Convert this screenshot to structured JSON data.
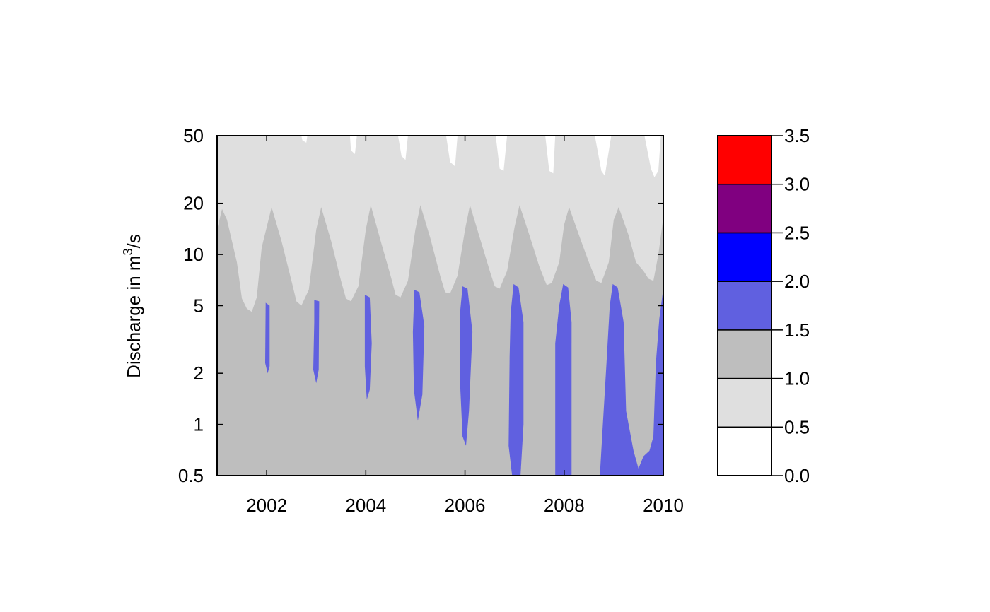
{
  "chart_data": {
    "type": "heatmap",
    "title": "",
    "xlabel": "",
    "ylabel": {
      "prefix": "Discharge in m",
      "superscript": "3",
      "suffix": "/s"
    },
    "x_axis": {
      "range": [
        2001.0,
        2010.0
      ],
      "ticks": [
        2002,
        2004,
        2006,
        2008,
        2010
      ],
      "tick_labels": [
        "2002",
        "2004",
        "2006",
        "2008",
        "2010"
      ]
    },
    "y_axis": {
      "scale": "log",
      "range": [
        0.5,
        50
      ],
      "ticks": [
        0.5,
        1,
        2,
        5,
        10,
        20,
        50
      ],
      "tick_labels": [
        "0.5",
        "1",
        "2",
        "5",
        "10",
        "20",
        "50"
      ]
    },
    "colorbar": {
      "placement": "right",
      "levels": [
        0.0,
        0.5,
        1.0,
        1.5,
        2.0,
        2.5,
        3.0,
        3.5
      ],
      "level_labels": [
        "0.0",
        "0.5",
        "1.0",
        "1.5",
        "2.0",
        "2.5",
        "3.0",
        "3.5"
      ],
      "colors": [
        "#ffffff",
        "#dfdfdf",
        "#bebebe",
        "#6060e0",
        "#0000ff",
        "#800080",
        "#ff0000"
      ]
    },
    "contours": {
      "level_1_0_boundary": [
        {
          "x": 2001.0,
          "y": 14
        },
        {
          "x": 2001.1,
          "y": 18.5
        },
        {
          "x": 2001.2,
          "y": 16
        },
        {
          "x": 2001.4,
          "y": 9
        },
        {
          "x": 2001.5,
          "y": 5.5
        },
        {
          "x": 2001.6,
          "y": 4.8
        },
        {
          "x": 2001.7,
          "y": 4.6
        },
        {
          "x": 2001.8,
          "y": 5.6
        },
        {
          "x": 2001.9,
          "y": 11
        },
        {
          "x": 2002.1,
          "y": 19
        },
        {
          "x": 2002.3,
          "y": 12
        },
        {
          "x": 2002.5,
          "y": 7
        },
        {
          "x": 2002.6,
          "y": 5.3
        },
        {
          "x": 2002.7,
          "y": 5.0
        },
        {
          "x": 2002.85,
          "y": 6.2
        },
        {
          "x": 2003.0,
          "y": 14
        },
        {
          "x": 2003.1,
          "y": 19
        },
        {
          "x": 2003.3,
          "y": 12
        },
        {
          "x": 2003.5,
          "y": 7
        },
        {
          "x": 2003.6,
          "y": 5.5
        },
        {
          "x": 2003.7,
          "y": 5.3
        },
        {
          "x": 2003.85,
          "y": 6.5
        },
        {
          "x": 2004.0,
          "y": 14
        },
        {
          "x": 2004.1,
          "y": 19.5
        },
        {
          "x": 2004.3,
          "y": 12
        },
        {
          "x": 2004.5,
          "y": 7.5
        },
        {
          "x": 2004.6,
          "y": 5.8
        },
        {
          "x": 2004.7,
          "y": 5.6
        },
        {
          "x": 2004.85,
          "y": 7
        },
        {
          "x": 2005.0,
          "y": 14
        },
        {
          "x": 2005.1,
          "y": 19.5
        },
        {
          "x": 2005.3,
          "y": 12.5
        },
        {
          "x": 2005.5,
          "y": 7.5
        },
        {
          "x": 2005.6,
          "y": 6.0
        },
        {
          "x": 2005.7,
          "y": 5.9
        },
        {
          "x": 2005.85,
          "y": 7.5
        },
        {
          "x": 2006.0,
          "y": 14
        },
        {
          "x": 2006.1,
          "y": 19.5
        },
        {
          "x": 2006.3,
          "y": 12.5
        },
        {
          "x": 2006.5,
          "y": 8
        },
        {
          "x": 2006.6,
          "y": 6.5
        },
        {
          "x": 2006.7,
          "y": 6.3
        },
        {
          "x": 2006.85,
          "y": 8
        },
        {
          "x": 2007.0,
          "y": 14.5
        },
        {
          "x": 2007.1,
          "y": 19.5
        },
        {
          "x": 2007.3,
          "y": 13
        },
        {
          "x": 2007.5,
          "y": 8.5
        },
        {
          "x": 2007.65,
          "y": 6.6
        },
        {
          "x": 2007.75,
          "y": 6.8
        },
        {
          "x": 2007.9,
          "y": 9
        },
        {
          "x": 2008.0,
          "y": 15
        },
        {
          "x": 2008.1,
          "y": 19
        },
        {
          "x": 2008.3,
          "y": 13
        },
        {
          "x": 2008.5,
          "y": 9
        },
        {
          "x": 2008.65,
          "y": 7.0
        },
        {
          "x": 2008.75,
          "y": 6.8
        },
        {
          "x": 2008.9,
          "y": 9
        },
        {
          "x": 2009.0,
          "y": 16
        },
        {
          "x": 2009.1,
          "y": 19
        },
        {
          "x": 2009.3,
          "y": 13
        },
        {
          "x": 2009.45,
          "y": 9
        },
        {
          "x": 2009.6,
          "y": 8
        },
        {
          "x": 2009.7,
          "y": 7.2
        },
        {
          "x": 2009.8,
          "y": 7.0
        },
        {
          "x": 2009.9,
          "y": 10
        },
        {
          "x": 2010.0,
          "y": 16.5
        }
      ],
      "level_0_5_regions": [
        [
          {
            "x": 2002.7,
            "y": 50
          },
          {
            "x": 2002.72,
            "y": 47
          },
          {
            "x": 2002.8,
            "y": 45.5
          },
          {
            "x": 2002.82,
            "y": 50
          }
        ],
        [
          {
            "x": 2003.68,
            "y": 50
          },
          {
            "x": 2003.7,
            "y": 41
          },
          {
            "x": 2003.78,
            "y": 39
          },
          {
            "x": 2003.82,
            "y": 50
          }
        ],
        [
          {
            "x": 2004.65,
            "y": 50
          },
          {
            "x": 2004.72,
            "y": 38
          },
          {
            "x": 2004.8,
            "y": 36
          },
          {
            "x": 2004.85,
            "y": 50
          }
        ],
        [
          {
            "x": 2005.62,
            "y": 50
          },
          {
            "x": 2005.7,
            "y": 35
          },
          {
            "x": 2005.8,
            "y": 33
          },
          {
            "x": 2005.85,
            "y": 50
          }
        ],
        [
          {
            "x": 2006.62,
            "y": 50
          },
          {
            "x": 2006.7,
            "y": 32
          },
          {
            "x": 2006.78,
            "y": 31
          },
          {
            "x": 2006.85,
            "y": 50
          }
        ],
        [
          {
            "x": 2007.62,
            "y": 50
          },
          {
            "x": 2007.7,
            "y": 31
          },
          {
            "x": 2007.78,
            "y": 30
          },
          {
            "x": 2007.82,
            "y": 50
          }
        ],
        [
          {
            "x": 2008.62,
            "y": 50
          },
          {
            "x": 2008.75,
            "y": 31
          },
          {
            "x": 2008.82,
            "y": 29
          },
          {
            "x": 2008.95,
            "y": 50
          }
        ],
        [
          {
            "x": 2009.62,
            "y": 50
          },
          {
            "x": 2009.75,
            "y": 32
          },
          {
            "x": 2009.82,
            "y": 28.5
          },
          {
            "x": 2009.9,
            "y": 31
          },
          {
            "x": 2009.95,
            "y": 50
          }
        ]
      ],
      "level_1_5_regions": [
        [
          {
            "x": 2001.98,
            "y": 5.2
          },
          {
            "x": 2002.06,
            "y": 5.0
          },
          {
            "x": 2002.06,
            "y": 2.2
          },
          {
            "x": 2002.02,
            "y": 2.0
          },
          {
            "x": 2001.97,
            "y": 2.3
          }
        ],
        [
          {
            "x": 2002.96,
            "y": 5.4
          },
          {
            "x": 2003.06,
            "y": 5.3
          },
          {
            "x": 2003.05,
            "y": 2.1
          },
          {
            "x": 2003.0,
            "y": 1.75
          },
          {
            "x": 2002.94,
            "y": 2.1
          },
          {
            "x": 2002.96,
            "y": 4.0
          }
        ],
        [
          {
            "x": 2003.98,
            "y": 5.8
          },
          {
            "x": 2004.08,
            "y": 5.6
          },
          {
            "x": 2004.12,
            "y": 3.0
          },
          {
            "x": 2004.08,
            "y": 1.6
          },
          {
            "x": 2004.02,
            "y": 1.4
          },
          {
            "x": 2003.98,
            "y": 2.2
          }
        ],
        [
          {
            "x": 2004.98,
            "y": 6.2
          },
          {
            "x": 2005.08,
            "y": 6.0
          },
          {
            "x": 2005.18,
            "y": 3.8
          },
          {
            "x": 2005.14,
            "y": 1.5
          },
          {
            "x": 2005.05,
            "y": 1.05
          },
          {
            "x": 2004.97,
            "y": 1.6
          },
          {
            "x": 2004.95,
            "y": 3.5
          }
        ],
        [
          {
            "x": 2005.95,
            "y": 6.5
          },
          {
            "x": 2006.05,
            "y": 6.3
          },
          {
            "x": 2006.15,
            "y": 3.5
          },
          {
            "x": 2006.08,
            "y": 1.2
          },
          {
            "x": 2006.02,
            "y": 0.75
          },
          {
            "x": 2005.95,
            "y": 0.85
          },
          {
            "x": 2005.9,
            "y": 1.8
          },
          {
            "x": 2005.9,
            "y": 4.5
          }
        ],
        [
          {
            "x": 2006.98,
            "y": 6.7
          },
          {
            "x": 2007.08,
            "y": 6.4
          },
          {
            "x": 2007.18,
            "y": 4.0
          },
          {
            "x": 2007.18,
            "y": 1.0
          },
          {
            "x": 2007.12,
            "y": 0.5
          },
          {
            "x": 2006.95,
            "y": 0.5
          },
          {
            "x": 2006.88,
            "y": 0.75
          },
          {
            "x": 2006.9,
            "y": 2.5
          },
          {
            "x": 2006.92,
            "y": 4.5
          }
        ],
        [
          {
            "x": 2007.98,
            "y": 6.7
          },
          {
            "x": 2008.08,
            "y": 6.4
          },
          {
            "x": 2008.15,
            "y": 4.0
          },
          {
            "x": 2008.15,
            "y": 0.5
          },
          {
            "x": 2007.82,
            "y": 0.5
          },
          {
            "x": 2007.82,
            "y": 3.0
          },
          {
            "x": 2007.9,
            "y": 5.0
          }
        ],
        [
          {
            "x": 2008.98,
            "y": 6.7
          },
          {
            "x": 2009.08,
            "y": 6.4
          },
          {
            "x": 2009.2,
            "y": 4.0
          },
          {
            "x": 2009.25,
            "y": 1.2
          },
          {
            "x": 2009.4,
            "y": 0.7
          },
          {
            "x": 2009.5,
            "y": 0.55
          },
          {
            "x": 2009.6,
            "y": 0.65
          },
          {
            "x": 2009.72,
            "y": 0.7
          },
          {
            "x": 2009.8,
            "y": 0.85
          },
          {
            "x": 2009.85,
            "y": 2.3
          },
          {
            "x": 2009.92,
            "y": 4.2
          },
          {
            "x": 2010.0,
            "y": 6.3
          },
          {
            "x": 2010.0,
            "y": 0.5
          },
          {
            "x": 2008.72,
            "y": 0.5
          },
          {
            "x": 2008.78,
            "y": 1.0
          },
          {
            "x": 2008.85,
            "y": 2.2
          },
          {
            "x": 2008.92,
            "y": 5.0
          }
        ]
      ]
    }
  }
}
